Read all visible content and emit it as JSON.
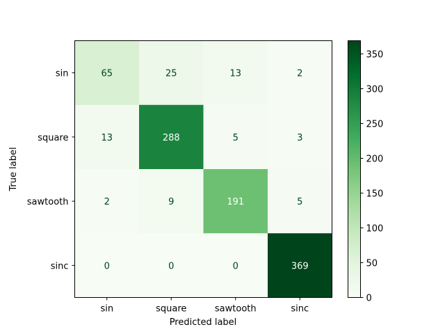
{
  "chart_data": {
    "type": "heatmap",
    "xlabel": "Predicted label",
    "ylabel": "True label",
    "x_categories": [
      "sin",
      "square",
      "sawtooth",
      "sinc"
    ],
    "y_categories": [
      "sin",
      "square",
      "sawtooth",
      "sinc"
    ],
    "values": [
      [
        65,
        25,
        13,
        2
      ],
      [
        13,
        288,
        5,
        3
      ],
      [
        2,
        9,
        191,
        5
      ],
      [
        0,
        0,
        0,
        369
      ]
    ],
    "colormap": "Greens",
    "colorbar": {
      "range": [
        0,
        369
      ],
      "ticks": [
        0,
        50,
        100,
        150,
        200,
        250,
        300,
        350
      ]
    }
  }
}
